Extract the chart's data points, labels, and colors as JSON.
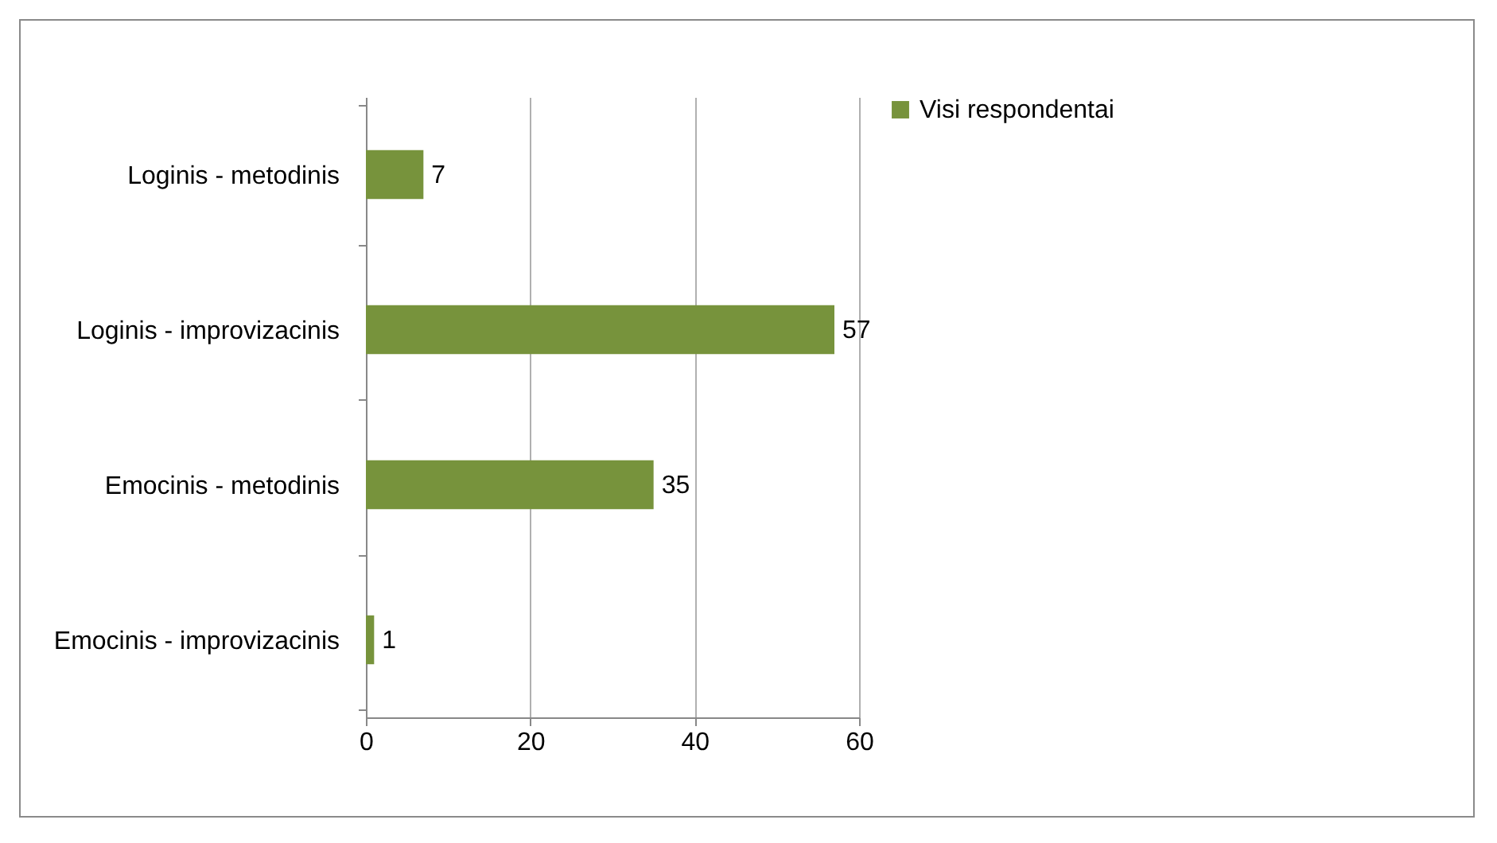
{
  "chart_data": {
    "type": "bar",
    "orientation": "horizontal",
    "categories": [
      "Loginis - metodinis",
      "Loginis - improvizacinis",
      "Emocinis - metodinis",
      "Emocinis - improvizacinis"
    ],
    "series": [
      {
        "name": "Visi respondentai",
        "color": "#77933c",
        "values": [
          7,
          57,
          35,
          1
        ]
      }
    ],
    "xlim": [
      0,
      60
    ],
    "xticks": [
      0,
      20,
      40,
      60
    ],
    "grid": "x",
    "legend": "right",
    "data_labels": true
  }
}
